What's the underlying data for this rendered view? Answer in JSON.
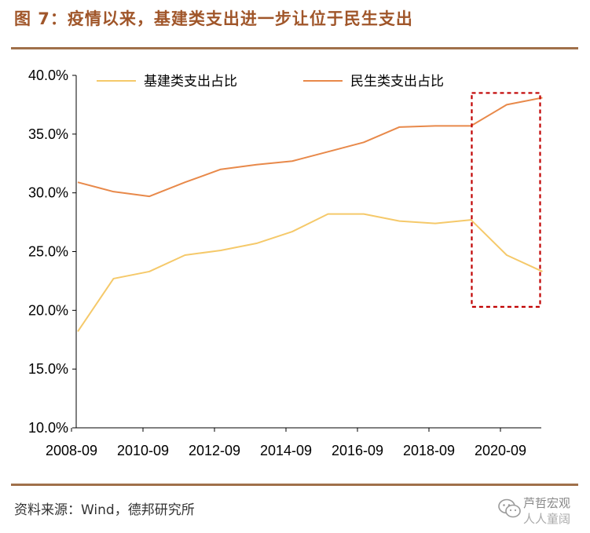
{
  "figure": {
    "title": "图 7：疫情以来，基建类支出进一步让位于民生支出",
    "source": "资料来源：Wind，德邦研究所",
    "watermark_name": "芦哲宏观",
    "watermark_sub": "人人童阔"
  },
  "colors": {
    "title": "#a0562a",
    "rule": "#a0704a",
    "infra": "#f5c96a",
    "livelihood": "#e8894a",
    "highlight_box": "#c00000"
  },
  "chart_data": {
    "type": "line",
    "title": "",
    "xlabel": "",
    "ylabel": "",
    "ylim": [
      10,
      40
    ],
    "y_ticks": [
      "10.0%",
      "15.0%",
      "20.0%",
      "25.0%",
      "30.0%",
      "35.0%",
      "40.0%"
    ],
    "y_tick_values": [
      10,
      15,
      20,
      25,
      30,
      35,
      40
    ],
    "x_ticks": [
      "2008-09",
      "2010-09",
      "2012-09",
      "2014-09",
      "2016-09",
      "2018-09",
      "2020-09"
    ],
    "x": [
      "2008-09",
      "2009-09",
      "2010-09",
      "2011-09",
      "2012-09",
      "2013-09",
      "2014-09",
      "2015-09",
      "2016-09",
      "2017-09",
      "2018-09",
      "2019-09",
      "2020-09",
      "2021-09"
    ],
    "series": [
      {
        "name": "基建类支出占比",
        "color": "#f5c96a",
        "values": [
          18.2,
          22.7,
          23.3,
          24.7,
          25.1,
          25.7,
          26.7,
          28.2,
          28.2,
          27.6,
          27.4,
          27.7,
          24.7,
          23.3
        ]
      },
      {
        "name": "民生类支出占比",
        "color": "#e8894a",
        "values": [
          30.9,
          30.1,
          29.7,
          30.9,
          32.0,
          32.4,
          32.7,
          33.5,
          34.3,
          35.6,
          35.7,
          35.7,
          37.5,
          38.1
        ]
      }
    ],
    "legend_position": "top",
    "highlight": {
      "from": "2019-09",
      "to": "2021-09",
      "y_low": 20.3,
      "y_high": 38.5
    }
  }
}
